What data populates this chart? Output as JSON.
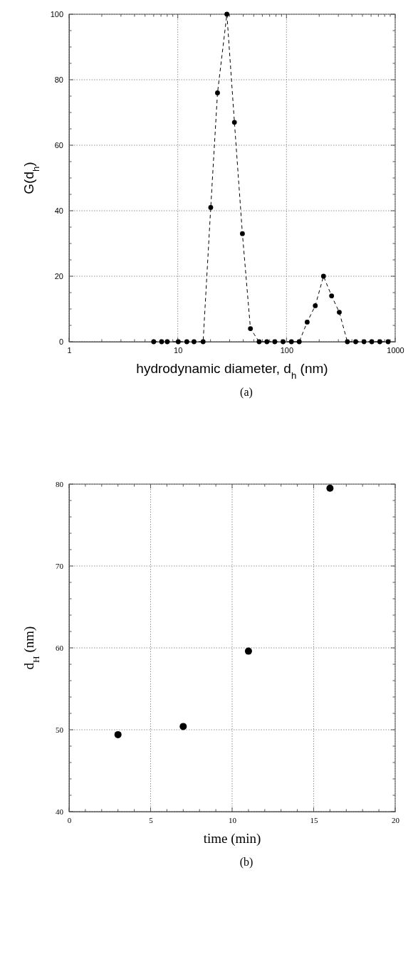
{
  "chart_data": [
    {
      "type": "line",
      "xlabel": "hydrodynamic diameter, d$_{h}$     (nm)",
      "ylabel": "G(d$_{h}$)",
      "log": "x",
      "xlim": [
        1,
        1000
      ],
      "ylim": [
        0,
        100
      ],
      "xticks": [
        1,
        {
          "value": 2,
          "label": null
        },
        {
          "value": 3,
          "label": null
        },
        {
          "value": 4,
          "label": null
        },
        {
          "value": 5,
          "label": null
        },
        {
          "value": 6,
          "label": null
        },
        {
          "value": 7,
          "label": null
        },
        {
          "value": 8,
          "label": null
        },
        {
          "value": 9,
          "label": null
        },
        10,
        {
          "value": 20,
          "label": null
        },
        {
          "value": 30,
          "label": null
        },
        {
          "value": 40,
          "label": null
        },
        {
          "value": 50,
          "label": null
        },
        {
          "value": 60,
          "label": null
        },
        {
          "value": 70,
          "label": null
        },
        {
          "value": 80,
          "label": null
        },
        {
          "value": 90,
          "label": null
        },
        100,
        {
          "value": 200,
          "label": null
        },
        {
          "value": 300,
          "label": null
        },
        {
          "value": 400,
          "label": null
        },
        {
          "value": 500,
          "label": null
        },
        {
          "value": 600,
          "label": null
        },
        {
          "value": 700,
          "label": null
        },
        {
          "value": 800,
          "label": null
        },
        {
          "value": 900,
          "label": null
        },
        1000
      ],
      "yticks": [
        0,
        {
          "value": 5,
          "label": null
        },
        {
          "value": 10,
          "label": null
        },
        {
          "value": 15,
          "label": null
        },
        20,
        {
          "value": 25,
          "label": null
        },
        {
          "value": 30,
          "label": null
        },
        {
          "value": 35,
          "label": null
        },
        40,
        {
          "value": 45,
          "label": null
        },
        {
          "value": 50,
          "label": null
        },
        {
          "value": 55,
          "label": null
        },
        60,
        {
          "value": 65,
          "label": null
        },
        {
          "value": 70,
          "label": null
        },
        {
          "value": 75,
          "label": null
        },
        80,
        {
          "value": 85,
          "label": null
        },
        {
          "value": 90,
          "label": null
        },
        {
          "value": 95,
          "label": null
        },
        100
      ],
      "grid": true,
      "marker": "circle",
      "line_style": "dashed",
      "annotations": [
        "(a)"
      ],
      "x": [
        6.0,
        7.1,
        8.0,
        10.1,
        12.1,
        14.1,
        17.1,
        20.1,
        23.2,
        28.3,
        33.2,
        39.3,
        46.6,
        56,
        66,
        78,
        93,
        111,
        131,
        155,
        184,
        219,
        260,
        306,
        363,
        433,
        516,
        609,
        722,
        861
      ],
      "series": [
        {
          "color": "#000000",
          "values": [
            0,
            0,
            0,
            0,
            0,
            0,
            0,
            41,
            76,
            100,
            67,
            33,
            4,
            0,
            0,
            0,
            0,
            0,
            0,
            6,
            11,
            20,
            14,
            9,
            0,
            0,
            0,
            0,
            0,
            0
          ]
        }
      ]
    },
    {
      "type": "scatter",
      "xlabel": "time    (min)",
      "ylabel": "d$_{H}$  (nm)",
      "xlim": [
        0,
        20
      ],
      "ylim": [
        40,
        80
      ],
      "xticks": [
        0,
        {
          "value": 1,
          "label": null
        },
        {
          "value": 2,
          "label": null
        },
        {
          "value": 3,
          "label": null
        },
        {
          "value": 4,
          "label": null
        },
        5,
        {
          "value": 6,
          "label": null
        },
        {
          "value": 7,
          "label": null
        },
        {
          "value": 8,
          "label": null
        },
        {
          "value": 9,
          "label": null
        },
        10,
        {
          "value": 11,
          "label": null
        },
        {
          "value": 12,
          "label": null
        },
        {
          "value": 13,
          "label": null
        },
        {
          "value": 14,
          "label": null
        },
        15,
        {
          "value": 16,
          "label": null
        },
        {
          "value": 17,
          "label": null
        },
        {
          "value": 18,
          "label": null
        },
        {
          "value": 19,
          "label": null
        },
        20
      ],
      "yticks": [
        40,
        {
          "value": 42,
          "label": null
        },
        {
          "value": 44,
          "label": null
        },
        {
          "value": 46,
          "label": null
        },
        {
          "value": 48,
          "label": null
        },
        50,
        {
          "value": 52,
          "label": null
        },
        {
          "value": 54,
          "label": null
        },
        {
          "value": 56,
          "label": null
        },
        {
          "value": 58,
          "label": null
        },
        60,
        {
          "value": 62,
          "label": null
        },
        {
          "value": 64,
          "label": null
        },
        {
          "value": 66,
          "label": null
        },
        {
          "value": 68,
          "label": null
        },
        70,
        {
          "value": 72,
          "label": null
        },
        {
          "value": 74,
          "label": null
        },
        {
          "value": 76,
          "label": null
        },
        {
          "value": 78,
          "label": null
        },
        80
      ],
      "grid": true,
      "marker": "circle",
      "annotations": [
        "(b)"
      ],
      "x": [
        3.0,
        7.0,
        11.0,
        16.0
      ],
      "series": [
        {
          "color": "#000000",
          "values": [
            49.4,
            50.4,
            59.6,
            79.5
          ]
        }
      ]
    }
  ]
}
